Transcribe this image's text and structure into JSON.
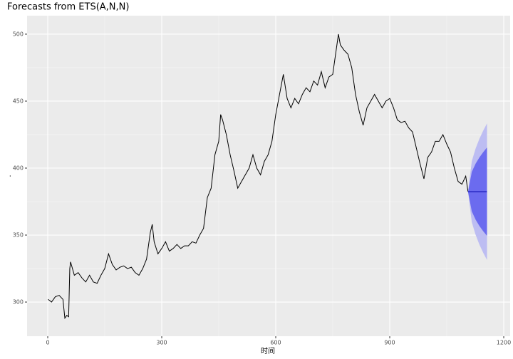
{
  "chart_data": {
    "type": "line",
    "title": "Forecasts from ETS(A,N,N)",
    "xlabel": "时间",
    "ylabel": ".",
    "xlim": [
      -54.4,
      1216.9
    ],
    "ylim": [
      274.5,
      513.8
    ],
    "xticks": [
      0,
      300,
      600,
      900,
      1200
    ],
    "yticks": [
      300,
      350,
      400,
      450,
      500
    ],
    "grid": true,
    "minor_grid": true,
    "series": [
      {
        "color": "#000000",
        "x": [
          1,
          10,
          20,
          30,
          40,
          45,
          50,
          55,
          58,
          60,
          70,
          80,
          90,
          100,
          110,
          120,
          130,
          140,
          150,
          160,
          170,
          180,
          190,
          200,
          210,
          220,
          230,
          240,
          250,
          260,
          270,
          275,
          280,
          290,
          300,
          310,
          320,
          330,
          340,
          350,
          360,
          370,
          380,
          390,
          400,
          410,
          420,
          430,
          440,
          450,
          455,
          460,
          470,
          480,
          490,
          500,
          510,
          520,
          530,
          540,
          550,
          560,
          570,
          580,
          590,
          600,
          610,
          620,
          630,
          640,
          650,
          660,
          670,
          680,
          690,
          700,
          710,
          720,
          730,
          740,
          750,
          760,
          765,
          770,
          780,
          790,
          800,
          810,
          820,
          830,
          840,
          850,
          860,
          870,
          880,
          890,
          900,
          910,
          920,
          930,
          940,
          950,
          960,
          970,
          980,
          990,
          1000,
          1010,
          1020,
          1030,
          1040,
          1050,
          1060,
          1070,
          1080,
          1090,
          1100,
          1106
        ],
        "values": [
          302,
          300,
          304,
          305,
          302,
          288,
          290,
          289,
          325,
          330,
          320,
          322,
          318,
          315,
          320,
          315,
          314,
          320,
          325,
          336,
          328,
          324,
          326,
          327,
          325,
          326,
          322,
          320,
          325,
          332,
          352,
          358,
          345,
          336,
          340,
          345,
          338,
          340,
          343,
          340,
          342,
          342,
          345,
          344,
          350,
          355,
          378,
          385,
          410,
          420,
          440,
          436,
          425,
          410,
          398,
          385,
          390,
          395,
          400,
          410,
          400,
          395,
          405,
          410,
          420,
          440,
          455,
          470,
          452,
          445,
          452,
          448,
          455,
          460,
          457,
          465,
          462,
          472,
          460,
          468,
          470,
          490,
          500,
          492,
          488,
          485,
          475,
          455,
          442,
          432,
          445,
          450,
          455,
          450,
          445,
          450,
          452,
          445,
          436,
          434,
          435,
          430,
          427,
          415,
          403,
          392,
          408,
          412,
          420,
          420,
          425,
          418,
          412,
          400,
          390,
          388,
          394,
          382.4
        ]
      }
    ],
    "forecast": {
      "x": [
        1106,
        1116,
        1126,
        1136,
        1146,
        1156
      ],
      "mean": [
        382.4,
        382.4,
        382.4,
        382.4,
        382.4,
        382.4
      ],
      "lo80": [
        382.4,
        367.6,
        361.5,
        356.8,
        352.9,
        349.4
      ],
      "hi80": [
        382.4,
        397.2,
        403.3,
        408.0,
        411.9,
        415.4
      ],
      "lo95": [
        382.4,
        359.6,
        350.2,
        342.9,
        336.8,
        331.4
      ],
      "hi95": [
        382.4,
        405.2,
        414.6,
        421.9,
        428.0,
        433.4
      ],
      "color80": "#6b6bef",
      "color95": "#bdbdf2",
      "color": "#0000aa"
    }
  }
}
